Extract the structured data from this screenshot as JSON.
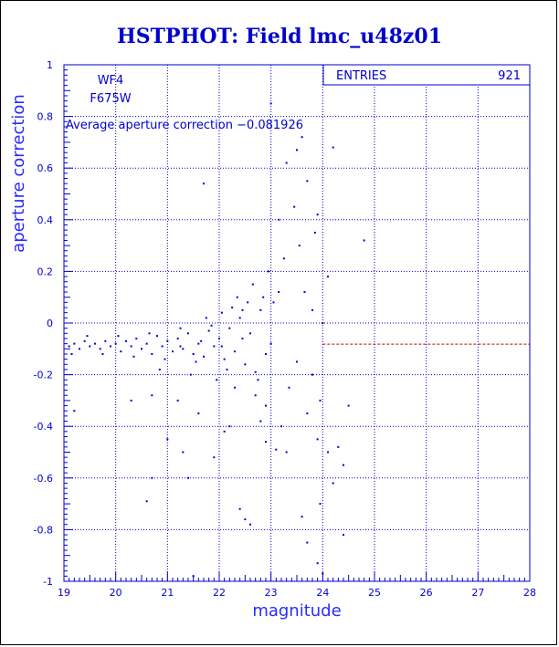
{
  "chart_data": {
    "type": "scatter",
    "title": "HSTPHOT: Field lmc_u48z01",
    "xlabel": "magnitude",
    "ylabel": "aperture correction",
    "xlim": [
      19,
      28
    ],
    "ylim": [
      -1,
      1
    ],
    "xticks": [
      "19",
      "20",
      "21",
      "22",
      "23",
      "24",
      "25",
      "26",
      "27",
      "28"
    ],
    "yticks": [
      "1",
      "0.8",
      "0.6",
      "0.4",
      "0.2",
      "0",
      "-0.2",
      "-0.4",
      "-0.6",
      "-0.8",
      "-1"
    ],
    "grid": true,
    "stats_box": {
      "label": "ENTRIES",
      "value": "921"
    },
    "chip": "WF4",
    "filter": "F675W",
    "average_text": "Average aperture correction −0.081926",
    "average_value": -0.081926,
    "average_line_color": "#cc0000",
    "point_color": "#0000cc",
    "points": [
      [
        19.1,
        -0.09
      ],
      [
        19.2,
        -0.08
      ],
      [
        19.3,
        -0.1
      ],
      [
        19.4,
        -0.07
      ],
      [
        19.5,
        -0.09
      ],
      [
        19.6,
        -0.08
      ],
      [
        19.7,
        -0.1
      ],
      [
        19.8,
        -0.07
      ],
      [
        19.9,
        -0.09
      ],
      [
        20.0,
        -0.08
      ],
      [
        20.1,
        -0.11
      ],
      [
        20.2,
        -0.07
      ],
      [
        20.3,
        -0.09
      ],
      [
        20.4,
        -0.06
      ],
      [
        20.5,
        -0.1
      ],
      [
        20.6,
        -0.08
      ],
      [
        20.7,
        -0.12
      ],
      [
        20.8,
        -0.05
      ],
      [
        20.9,
        -0.09
      ],
      [
        21.0,
        -0.07
      ],
      [
        21.1,
        -0.11
      ],
      [
        21.2,
        -0.06
      ],
      [
        21.3,
        -0.1
      ],
      [
        21.4,
        -0.04
      ],
      [
        21.5,
        -0.12
      ],
      [
        21.6,
        -0.08
      ],
      [
        21.7,
        -0.13
      ],
      [
        21.8,
        -0.03
      ],
      [
        21.9,
        -0.09
      ],
      [
        22.0,
        -0.06
      ],
      [
        22.1,
        -0.14
      ],
      [
        22.2,
        -0.02
      ],
      [
        22.3,
        -0.11
      ],
      [
        22.4,
        0.02
      ],
      [
        22.5,
        -0.16
      ],
      [
        22.6,
        -0.04
      ],
      [
        22.7,
        -0.19
      ],
      [
        22.8,
        0.05
      ],
      [
        22.9,
        -0.12
      ],
      [
        23.0,
        -0.08
      ],
      [
        19.15,
        -0.12
      ],
      [
        19.45,
        -0.05
      ],
      [
        19.75,
        -0.12
      ],
      [
        20.05,
        -0.05
      ],
      [
        20.35,
        -0.13
      ],
      [
        20.65,
        -0.04
      ],
      [
        20.95,
        -0.14
      ],
      [
        21.25,
        -0.02
      ],
      [
        21.55,
        -0.15
      ],
      [
        21.85,
        -0.01
      ],
      [
        22.15,
        -0.18
      ],
      [
        22.45,
        0.05
      ],
      [
        22.75,
        -0.22
      ],
      [
        23.05,
        0.08
      ],
      [
        23.35,
        -0.25
      ],
      [
        23.65,
        0.12
      ],
      [
        23.95,
        -0.3
      ],
      [
        22.35,
        0.1
      ],
      [
        22.65,
        0.15
      ],
      [
        22.95,
        0.2
      ],
      [
        23.25,
        0.25
      ],
      [
        23.55,
        0.3
      ],
      [
        23.85,
        0.35
      ],
      [
        23.15,
        0.4
      ],
      [
        23.45,
        0.45
      ],
      [
        23.7,
        0.55
      ],
      [
        23.3,
        0.62
      ],
      [
        23.5,
        0.67
      ],
      [
        23.6,
        0.72
      ],
      [
        23.9,
        0.42
      ],
      [
        23.0,
        0.85
      ],
      [
        24.2,
        0.68
      ],
      [
        24.8,
        0.32
      ],
      [
        24.1,
        0.18
      ],
      [
        23.8,
        0.05
      ],
      [
        23.7,
        -0.35
      ],
      [
        23.2,
        -0.4
      ],
      [
        23.9,
        -0.45
      ],
      [
        24.3,
        -0.48
      ],
      [
        24.4,
        -0.55
      ],
      [
        24.1,
        -0.5
      ],
      [
        24.2,
        -0.62
      ],
      [
        23.95,
        -0.7
      ],
      [
        23.6,
        -0.75
      ],
      [
        22.5,
        -0.76
      ],
      [
        22.6,
        -0.78
      ],
      [
        23.7,
        -0.85
      ],
      [
        23.9,
        -0.93
      ],
      [
        24.0,
        -0.97
      ],
      [
        24.4,
        -0.82
      ],
      [
        21.5,
        -0.98
      ],
      [
        21.0,
        -0.45
      ],
      [
        21.3,
        -0.5
      ],
      [
        21.9,
        -0.52
      ],
      [
        20.7,
        -0.6
      ],
      [
        21.4,
        -0.6
      ],
      [
        20.6,
        -0.69
      ],
      [
        22.4,
        -0.72
      ],
      [
        24.5,
        -0.32
      ],
      [
        20.3,
        -0.3
      ],
      [
        20.7,
        -0.28
      ],
      [
        21.2,
        -0.3
      ],
      [
        21.6,
        -0.35
      ],
      [
        22.1,
        -0.42
      ],
      [
        22.2,
        -0.4
      ],
      [
        22.8,
        -0.38
      ],
      [
        22.9,
        -0.46
      ],
      [
        23.1,
        -0.49
      ],
      [
        23.3,
        -0.5
      ],
      [
        21.7,
        0.54
      ],
      [
        19.2,
        -0.34
      ],
      [
        24.0,
        0.0
      ],
      [
        23.8,
        -0.2
      ],
      [
        23.5,
        -0.15
      ],
      [
        22.9,
        -0.32
      ],
      [
        22.7,
        -0.28
      ],
      [
        22.3,
        -0.25
      ],
      [
        21.95,
        -0.22
      ],
      [
        21.45,
        -0.2
      ],
      [
        20.85,
        -0.18
      ],
      [
        21.75,
        0.02
      ],
      [
        22.05,
        0.04
      ],
      [
        22.25,
        0.06
      ],
      [
        22.55,
        0.08
      ],
      [
        22.85,
        0.1
      ],
      [
        23.15,
        0.12
      ],
      [
        22.45,
        -0.06
      ],
      [
        22.05,
        -0.09
      ],
      [
        21.65,
        -0.07
      ],
      [
        21.25,
        -0.09
      ]
    ]
  }
}
